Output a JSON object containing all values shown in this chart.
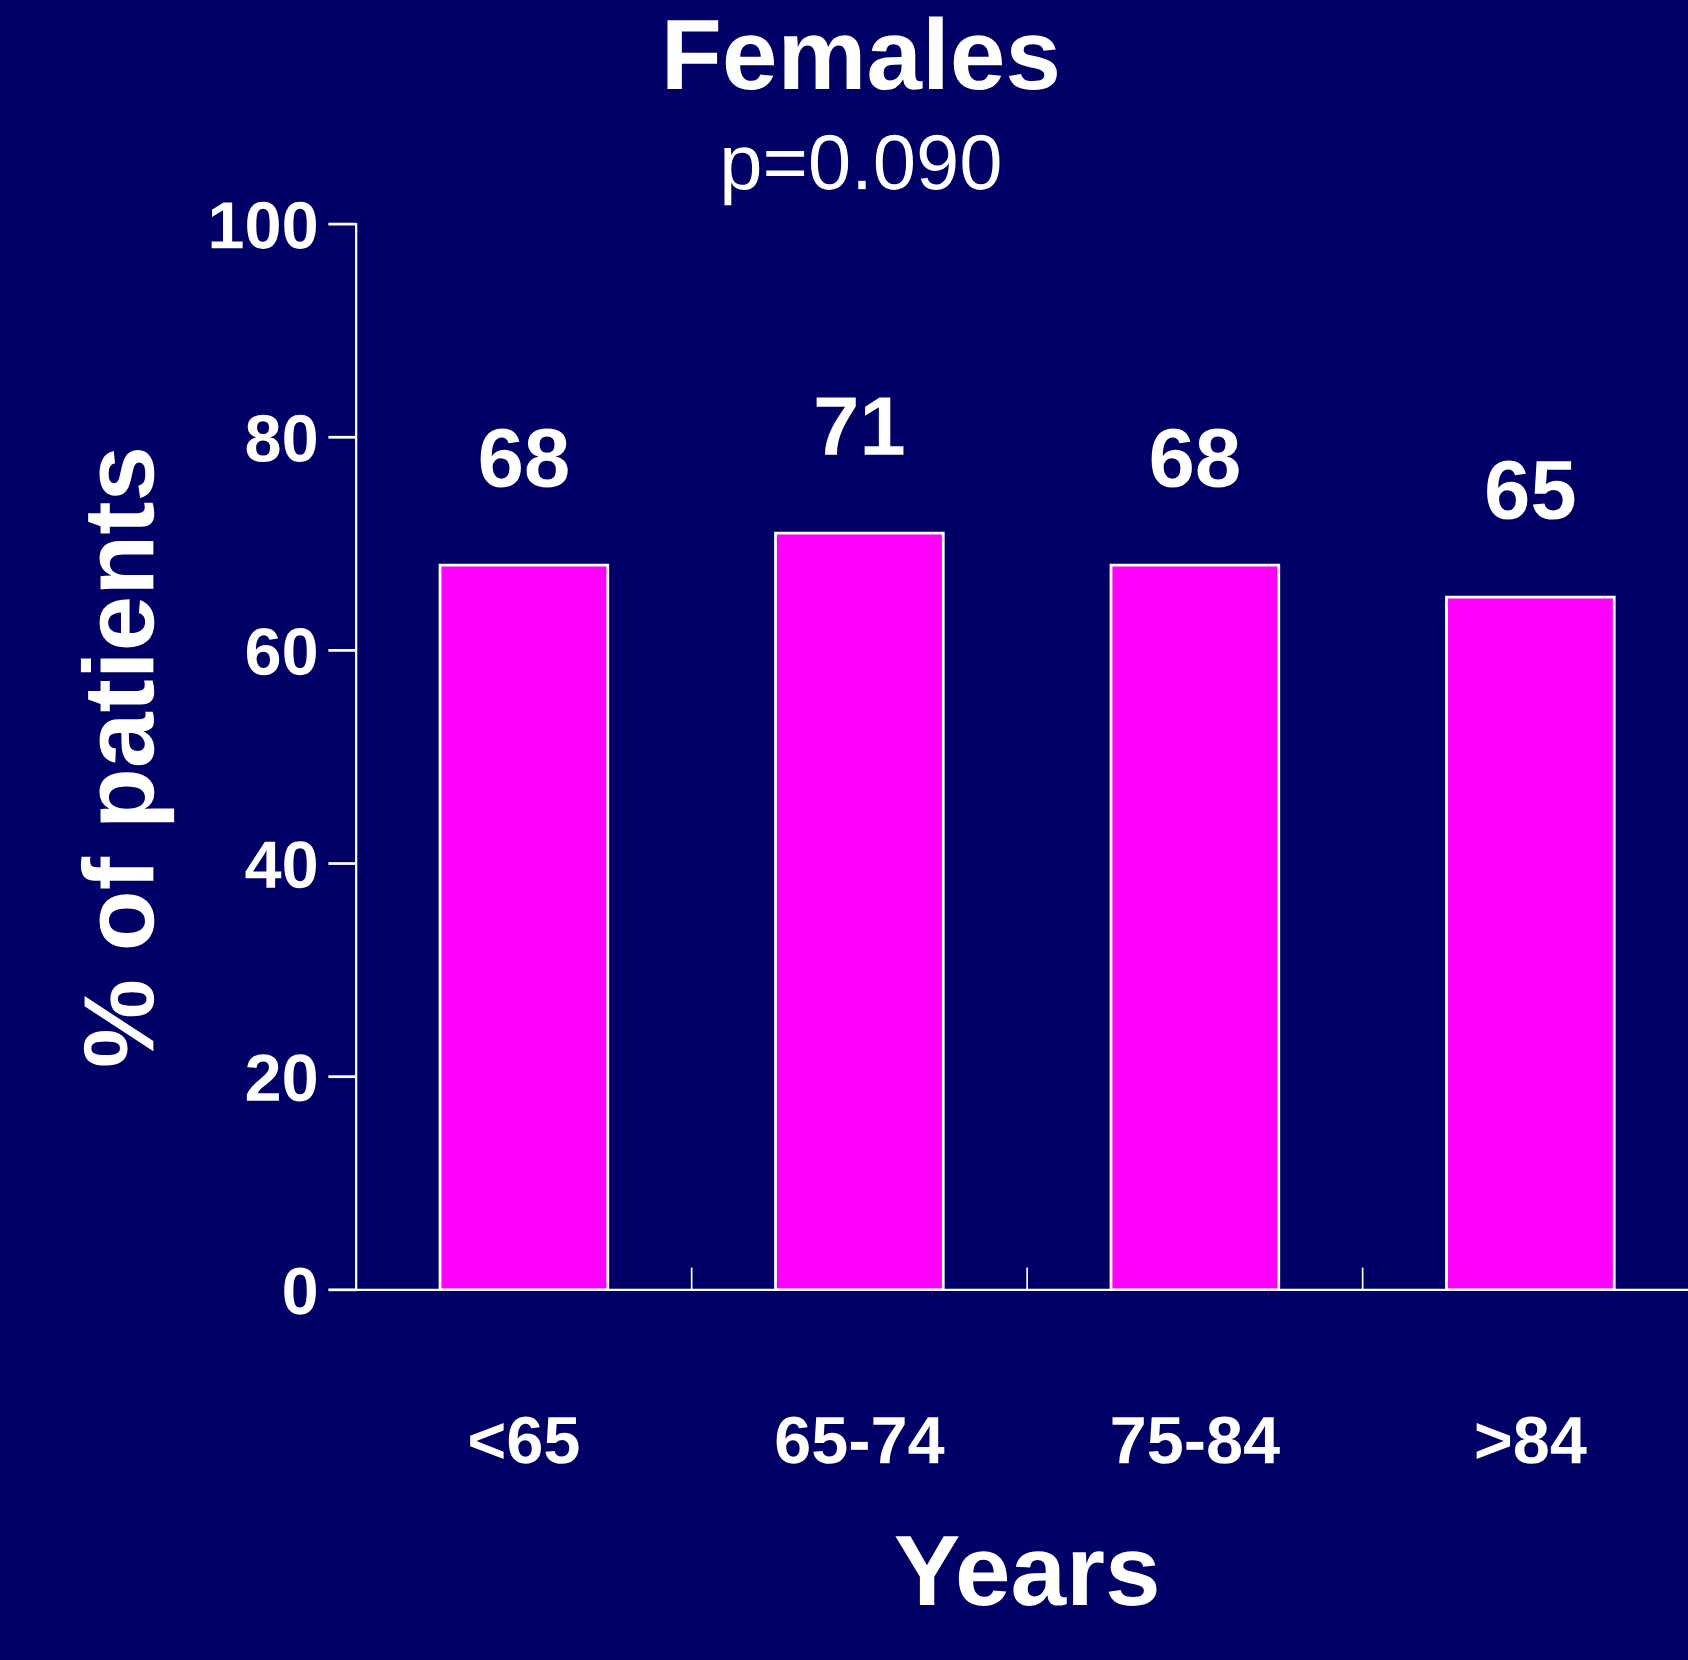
{
  "chart_data": {
    "type": "bar",
    "title": "Females",
    "subtitle": "p=0.090",
    "xlabel": "Years",
    "ylabel": "% of patients",
    "categories": [
      "<65",
      "65-74",
      "75-84",
      ">84"
    ],
    "values": [
      68,
      71,
      68,
      65
    ],
    "color": "#ff00ff",
    "ylim": [
      0,
      100
    ],
    "yticks": [
      0,
      20,
      40,
      60,
      80,
      100
    ],
    "data_labels": true,
    "grid": false,
    "legend": false
  }
}
